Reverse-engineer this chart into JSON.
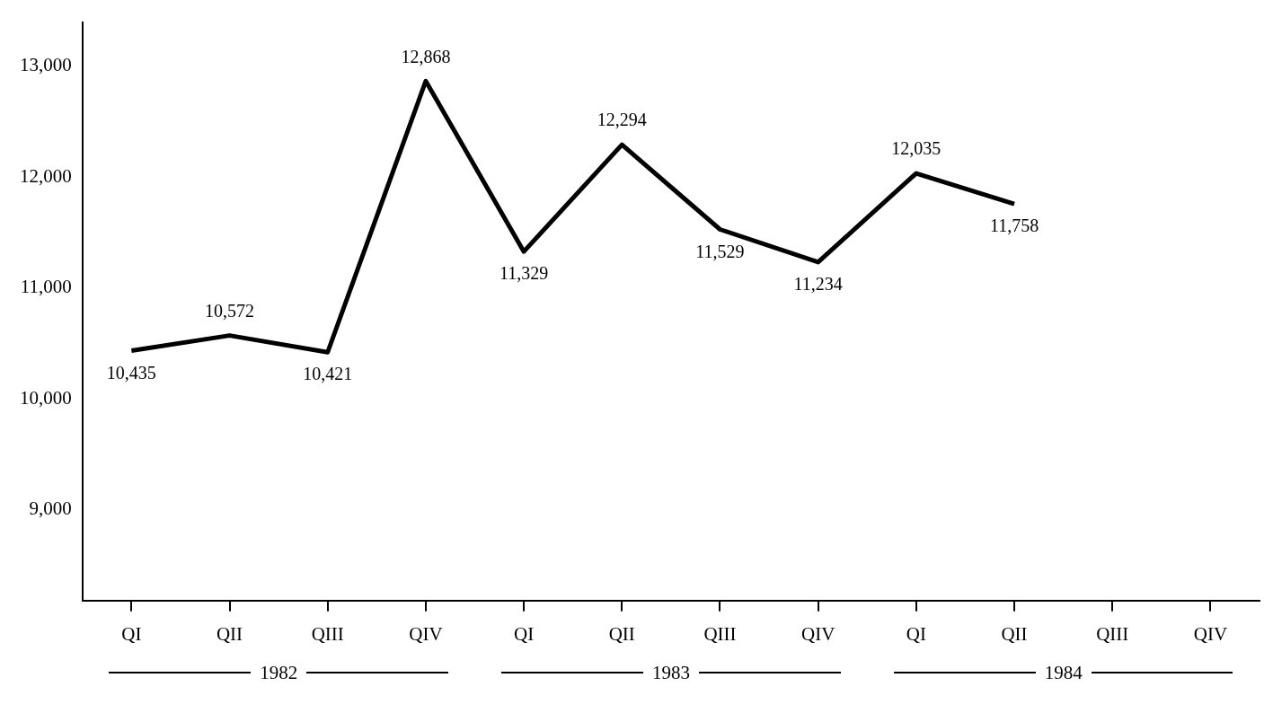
{
  "chart_data": {
    "type": "line",
    "categories": [
      "QI",
      "QII",
      "QIII",
      "QIV",
      "QI",
      "QII",
      "QIII",
      "QIV",
      "QI",
      "QII",
      "QIII",
      "QIV"
    ],
    "series": [
      {
        "color": "#000000",
        "values": [
          10435,
          10572,
          10421,
          12868,
          11329,
          12294,
          11529,
          11234,
          12035,
          11758,
          null,
          null
        ],
        "value_labels": [
          "10,435",
          "10,572",
          "10,421",
          "12,868",
          "11,329",
          "12,294",
          "11,529",
          "11,234",
          "12,035",
          "11,758",
          null,
          null
        ]
      }
    ],
    "ylim": [
      8180,
      13400
    ],
    "yticks": [
      {
        "value": 9000,
        "label": "9,000"
      },
      {
        "value": 10000,
        "label": "10,000"
      },
      {
        "value": 11000,
        "label": "11,000"
      },
      {
        "value": 12000,
        "label": "12,000"
      },
      {
        "value": 13000,
        "label": "13,000"
      }
    ],
    "grid": false,
    "legend": false,
    "marker": "none",
    "line_style": "solid",
    "annotations": [
      "1982",
      "1983",
      "1984"
    ]
  }
}
